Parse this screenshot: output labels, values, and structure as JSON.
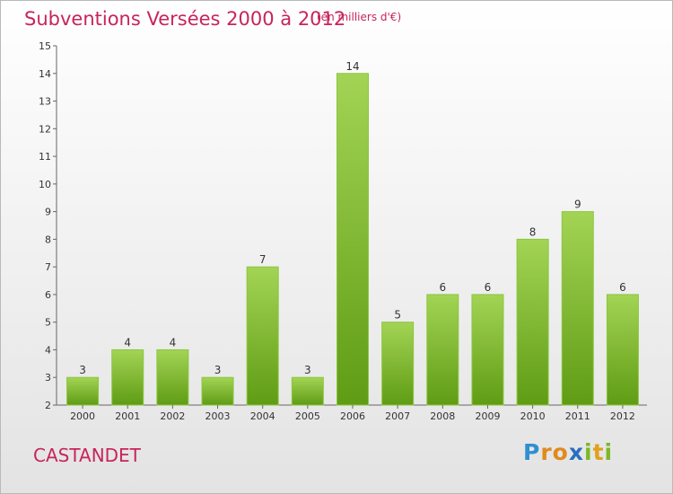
{
  "chart_data": {
    "type": "bar",
    "title": "Subventions Versées 2000 à 2012",
    "unit_note": "(en milliers d'€)",
    "categories": [
      "2000",
      "2001",
      "2002",
      "2003",
      "2004",
      "2005",
      "2006",
      "2007",
      "2008",
      "2009",
      "2010",
      "2011",
      "2012"
    ],
    "values": [
      3,
      4,
      4,
      3,
      7,
      3,
      14,
      5,
      6,
      6,
      8,
      9,
      6
    ],
    "yticks": [
      "2",
      "3",
      "4",
      "5",
      "6",
      "7",
      "8",
      "9",
      "10",
      "11",
      "12",
      "13",
      "14",
      "15"
    ],
    "ylim": [
      2,
      15
    ],
    "grid": false,
    "bar_color": "#7ab827"
  },
  "location": "CASTANDET",
  "brand": {
    "letters": [
      "P",
      "r",
      "o",
      "x",
      "i",
      "t",
      "i"
    ],
    "colors": [
      "#2f8fd0",
      "#e08a1e",
      "#e08a1e",
      "#2a6fc0",
      "#7ab827",
      "#e0a11e",
      "#7ab827"
    ]
  }
}
